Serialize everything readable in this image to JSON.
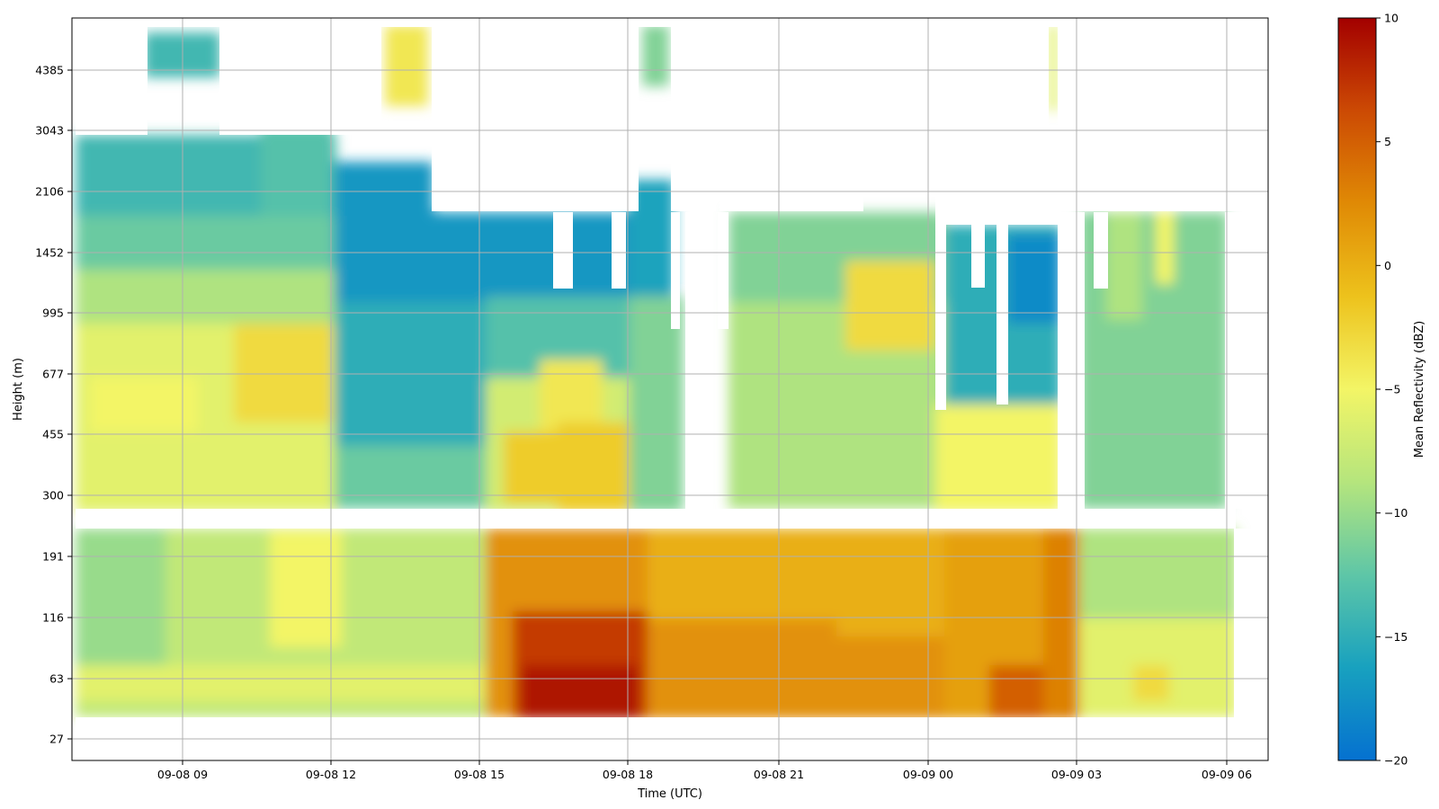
{
  "chart_data": {
    "type": "heatmap",
    "title": "",
    "xlabel": "Time (UTC)",
    "ylabel": "Height (m)",
    "x_tick_labels": [
      "09-08 09",
      "09-08 12",
      "09-08 15",
      "09-08 18",
      "09-08 21",
      "09-09 00",
      "09-09 03",
      "09-09 06"
    ],
    "y_tick_labels": [
      "27",
      "63",
      "116",
      "191",
      "300",
      "455",
      "677",
      "995",
      "1452",
      "2106",
      "3043",
      "4385"
    ],
    "y_scale": "log",
    "xlim": [
      "09-08 06:45",
      "09-09 06:15"
    ],
    "grid": true,
    "colorbar": {
      "label": "Mean Reflectivity (dBZ)",
      "range": [
        -20,
        10
      ],
      "tick_labels": [
        "10",
        "5",
        "0",
        "−5",
        "−10",
        "−15",
        "−20"
      ],
      "colormap": [
        "#0571d0",
        "#18a1bf",
        "#5ec6a7",
        "#b5e57d",
        "#f3f566",
        "#edc21c",
        "#e08a05",
        "#cc4a04",
        "#a30000"
      ]
    },
    "description_values": {
      "low_level_max_dBZ": 9,
      "upper_level_min_dBZ": -18
    }
  }
}
